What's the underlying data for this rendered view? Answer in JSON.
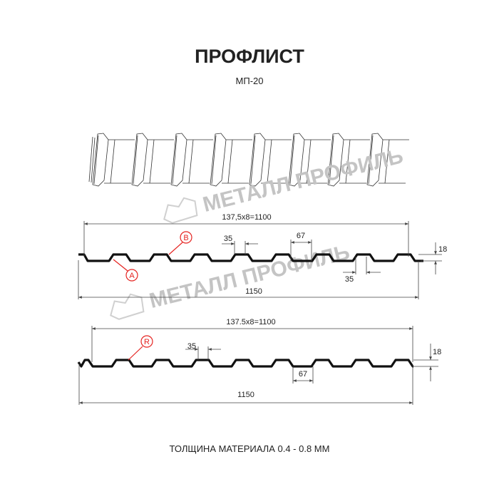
{
  "title": "ПРОФЛИСТ",
  "subtitle": "МП-20",
  "footer": "ТОЛЩИНА МАТЕРИАЛА 0.4 - 0.8 ММ",
  "watermark": "МЕТАЛЛ ПРОФИЛЬ",
  "colors": {
    "profile": "#111111",
    "marker": "#e52320",
    "watermark": "#c4c4c4"
  },
  "profile1": {
    "pitch_label": "137,5x8=1100",
    "total_label": "1150",
    "top_width": "35",
    "bottom_width": "35",
    "rib_width": "67",
    "height": "18",
    "marker_a": "A",
    "marker_b": "B"
  },
  "profile2": {
    "pitch_label": "137.5x8=1100",
    "total_label": "1150",
    "top_width": "35",
    "rib_width": "67",
    "height": "18",
    "marker_r": "R"
  }
}
